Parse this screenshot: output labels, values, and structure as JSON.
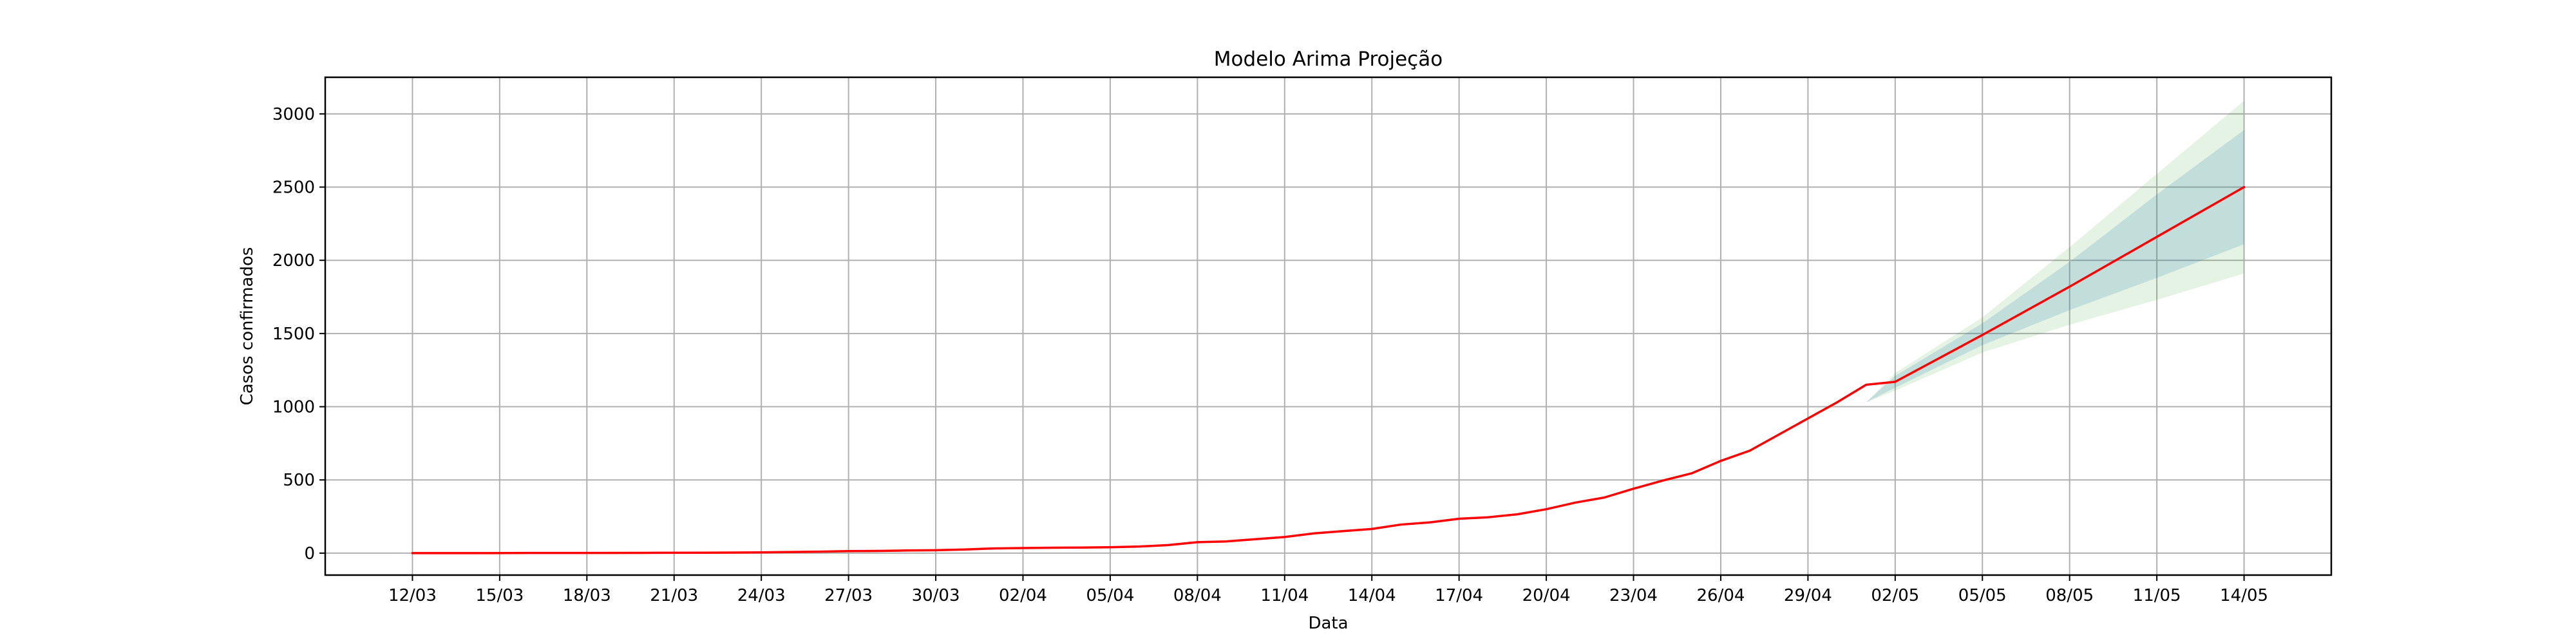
{
  "chart_data": {
    "type": "line",
    "title": "Modelo Arima Projeção",
    "xlabel": "Data",
    "ylabel": "Casos confirmados",
    "x_tick_labels": [
      "12/03",
      "15/03",
      "18/03",
      "21/03",
      "24/03",
      "27/03",
      "30/03",
      "02/04",
      "05/04",
      "08/04",
      "11/04",
      "14/04",
      "17/04",
      "20/04",
      "23/04",
      "26/04",
      "29/04",
      "02/05",
      "05/05",
      "08/05",
      "11/05",
      "14/05"
    ],
    "y_ticks": [
      0,
      500,
      1000,
      1500,
      2000,
      2500,
      3000
    ],
    "xlim": [
      "2020-03-09",
      "2020-05-17"
    ],
    "ylim": [
      -150,
      3250
    ],
    "grid": true,
    "series": [
      {
        "color": "#ff0000",
        "x": [
          "2020-03-12",
          "2020-03-14",
          "2020-03-16",
          "2020-03-18",
          "2020-03-20",
          "2020-03-22",
          "2020-03-24",
          "2020-03-26",
          "2020-03-27",
          "2020-03-28",
          "2020-03-29",
          "2020-03-30",
          "2020-03-31",
          "2020-04-01",
          "2020-04-02",
          "2020-04-03",
          "2020-04-04",
          "2020-04-05",
          "2020-04-06",
          "2020-04-07",
          "2020-04-08",
          "2020-04-09",
          "2020-04-10",
          "2020-04-11",
          "2020-04-12",
          "2020-04-13",
          "2020-04-14",
          "2020-04-15",
          "2020-04-16",
          "2020-04-17",
          "2020-04-18",
          "2020-04-19",
          "2020-04-20",
          "2020-04-21",
          "2020-04-22",
          "2020-04-23",
          "2020-04-24",
          "2020-04-25",
          "2020-04-26",
          "2020-04-27",
          "2020-04-28",
          "2020-04-29",
          "2020-04-30",
          "2020-05-01",
          "2020-05-02",
          "2020-05-05",
          "2020-05-08",
          "2020-05-11",
          "2020-05-14"
        ],
        "y": [
          0,
          0,
          1,
          1,
          2,
          3,
          5,
          10,
          14,
          15,
          18,
          20,
          25,
          32,
          35,
          37,
          38,
          40,
          45,
          55,
          75,
          80,
          95,
          110,
          135,
          150,
          165,
          195,
          210,
          235,
          245,
          265,
          300,
          345,
          380,
          440,
          495,
          545,
          630,
          700,
          810,
          920,
          1030,
          1150,
          1170,
          1490,
          1820,
          2160,
          2500
        ]
      }
    ],
    "bands": [
      {
        "color": "#2ca02c",
        "opacity": 0.13,
        "x": [
          "2020-05-01",
          "2020-05-02",
          "2020-05-05",
          "2020-05-08",
          "2020-05-11",
          "2020-05-14"
        ],
        "lower": [
          1030,
          1110,
          1370,
          1560,
          1730,
          1910
        ],
        "upper": [
          1030,
          1230,
          1610,
          2090,
          2590,
          3090
        ]
      },
      {
        "color": "#1f77b4",
        "opacity": 0.17,
        "x": [
          "2020-05-01",
          "2020-05-02",
          "2020-05-05",
          "2020-05-08",
          "2020-05-11",
          "2020-05-14"
        ],
        "lower": [
          1030,
          1130,
          1420,
          1660,
          1880,
          2110
        ],
        "upper": [
          1030,
          1210,
          1570,
          1990,
          2450,
          2890
        ]
      }
    ]
  }
}
